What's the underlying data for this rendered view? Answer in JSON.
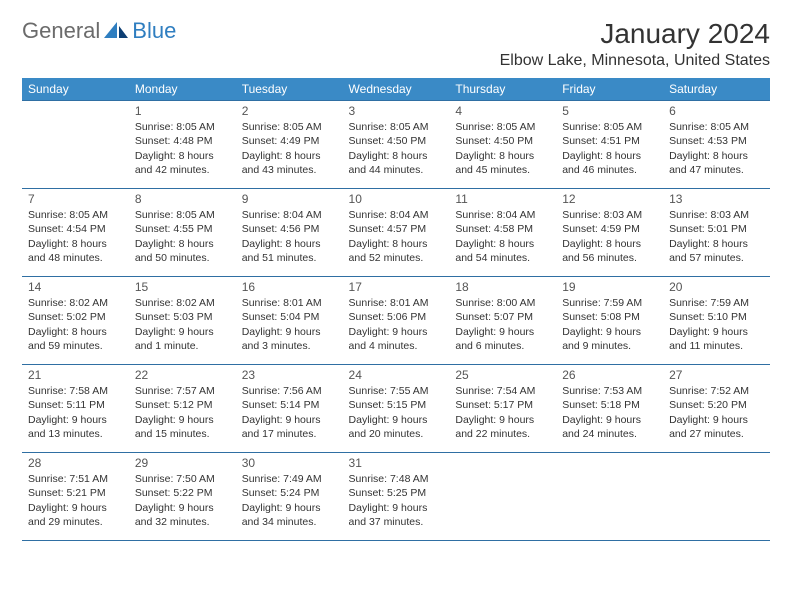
{
  "logo": {
    "text1": "General",
    "text2": "Blue"
  },
  "title": "January 2024",
  "location": "Elbow Lake, Minnesota, United States",
  "colors": {
    "header_bg": "#3a8ac6",
    "header_text": "#ffffff",
    "cell_border": "#2f6fa3",
    "body_text": "#333333",
    "logo_gray": "#6b6b6b",
    "logo_blue": "#2f7ec0",
    "page_bg": "#ffffff"
  },
  "weekdays": [
    "Sunday",
    "Monday",
    "Tuesday",
    "Wednesday",
    "Thursday",
    "Friday",
    "Saturday"
  ],
  "weeks": [
    [
      null,
      {
        "n": "1",
        "sr": "8:05 AM",
        "ss": "4:48 PM",
        "dl": "8 hours and 42 minutes."
      },
      {
        "n": "2",
        "sr": "8:05 AM",
        "ss": "4:49 PM",
        "dl": "8 hours and 43 minutes."
      },
      {
        "n": "3",
        "sr": "8:05 AM",
        "ss": "4:50 PM",
        "dl": "8 hours and 44 minutes."
      },
      {
        "n": "4",
        "sr": "8:05 AM",
        "ss": "4:50 PM",
        "dl": "8 hours and 45 minutes."
      },
      {
        "n": "5",
        "sr": "8:05 AM",
        "ss": "4:51 PM",
        "dl": "8 hours and 46 minutes."
      },
      {
        "n": "6",
        "sr": "8:05 AM",
        "ss": "4:53 PM",
        "dl": "8 hours and 47 minutes."
      }
    ],
    [
      {
        "n": "7",
        "sr": "8:05 AM",
        "ss": "4:54 PM",
        "dl": "8 hours and 48 minutes."
      },
      {
        "n": "8",
        "sr": "8:05 AM",
        "ss": "4:55 PM",
        "dl": "8 hours and 50 minutes."
      },
      {
        "n": "9",
        "sr": "8:04 AM",
        "ss": "4:56 PM",
        "dl": "8 hours and 51 minutes."
      },
      {
        "n": "10",
        "sr": "8:04 AM",
        "ss": "4:57 PM",
        "dl": "8 hours and 52 minutes."
      },
      {
        "n": "11",
        "sr": "8:04 AM",
        "ss": "4:58 PM",
        "dl": "8 hours and 54 minutes."
      },
      {
        "n": "12",
        "sr": "8:03 AM",
        "ss": "4:59 PM",
        "dl": "8 hours and 56 minutes."
      },
      {
        "n": "13",
        "sr": "8:03 AM",
        "ss": "5:01 PM",
        "dl": "8 hours and 57 minutes."
      }
    ],
    [
      {
        "n": "14",
        "sr": "8:02 AM",
        "ss": "5:02 PM",
        "dl": "8 hours and 59 minutes."
      },
      {
        "n": "15",
        "sr": "8:02 AM",
        "ss": "5:03 PM",
        "dl": "9 hours and 1 minute."
      },
      {
        "n": "16",
        "sr": "8:01 AM",
        "ss": "5:04 PM",
        "dl": "9 hours and 3 minutes."
      },
      {
        "n": "17",
        "sr": "8:01 AM",
        "ss": "5:06 PM",
        "dl": "9 hours and 4 minutes."
      },
      {
        "n": "18",
        "sr": "8:00 AM",
        "ss": "5:07 PM",
        "dl": "9 hours and 6 minutes."
      },
      {
        "n": "19",
        "sr": "7:59 AM",
        "ss": "5:08 PM",
        "dl": "9 hours and 9 minutes."
      },
      {
        "n": "20",
        "sr": "7:59 AM",
        "ss": "5:10 PM",
        "dl": "9 hours and 11 minutes."
      }
    ],
    [
      {
        "n": "21",
        "sr": "7:58 AM",
        "ss": "5:11 PM",
        "dl": "9 hours and 13 minutes."
      },
      {
        "n": "22",
        "sr": "7:57 AM",
        "ss": "5:12 PM",
        "dl": "9 hours and 15 minutes."
      },
      {
        "n": "23",
        "sr": "7:56 AM",
        "ss": "5:14 PM",
        "dl": "9 hours and 17 minutes."
      },
      {
        "n": "24",
        "sr": "7:55 AM",
        "ss": "5:15 PM",
        "dl": "9 hours and 20 minutes."
      },
      {
        "n": "25",
        "sr": "7:54 AM",
        "ss": "5:17 PM",
        "dl": "9 hours and 22 minutes."
      },
      {
        "n": "26",
        "sr": "7:53 AM",
        "ss": "5:18 PM",
        "dl": "9 hours and 24 minutes."
      },
      {
        "n": "27",
        "sr": "7:52 AM",
        "ss": "5:20 PM",
        "dl": "9 hours and 27 minutes."
      }
    ],
    [
      {
        "n": "28",
        "sr": "7:51 AM",
        "ss": "5:21 PM",
        "dl": "9 hours and 29 minutes."
      },
      {
        "n": "29",
        "sr": "7:50 AM",
        "ss": "5:22 PM",
        "dl": "9 hours and 32 minutes."
      },
      {
        "n": "30",
        "sr": "7:49 AM",
        "ss": "5:24 PM",
        "dl": "9 hours and 34 minutes."
      },
      {
        "n": "31",
        "sr": "7:48 AM",
        "ss": "5:25 PM",
        "dl": "9 hours and 37 minutes."
      },
      null,
      null,
      null
    ]
  ],
  "labels": {
    "sunrise": "Sunrise: ",
    "sunset": "Sunset: ",
    "daylight": "Daylight: "
  }
}
